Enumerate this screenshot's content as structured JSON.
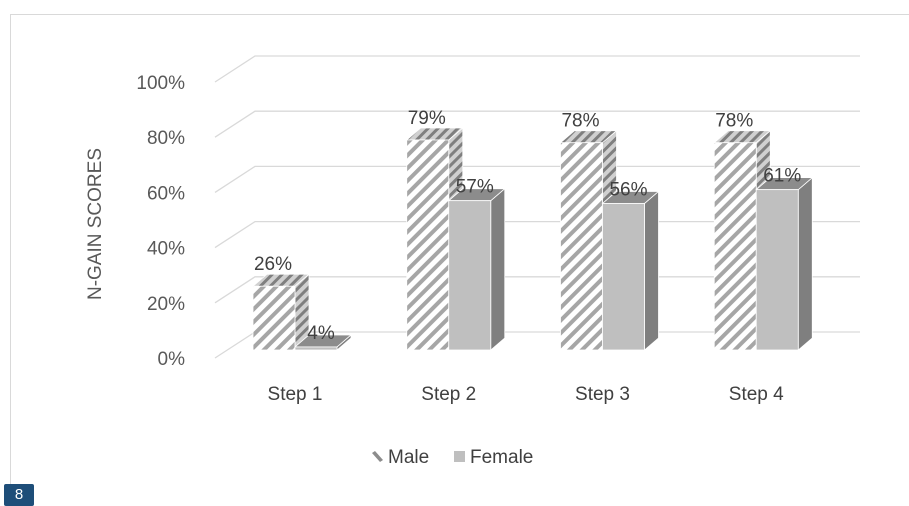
{
  "chart_data": {
    "type": "bar",
    "title": "",
    "xlabel": "",
    "ylabel": "N-GAIN SCORES",
    "categories": [
      "Step 1",
      "Step 2",
      "Step 3",
      "Step 4"
    ],
    "series": [
      {
        "name": "Male",
        "values": [
          26,
          79,
          78,
          78
        ],
        "labels": [
          "26%",
          "79%",
          "78%",
          "78%"
        ],
        "pattern": "hatched",
        "color": "#bfbfbf"
      },
      {
        "name": "Female",
        "values": [
          4,
          57,
          56,
          61
        ],
        "labels": [
          "4%",
          "57%",
          "56%",
          "61%"
        ],
        "pattern": "solid",
        "color": "#a6a6a6"
      }
    ],
    "ylim": [
      0,
      100
    ],
    "yticks": [
      "0%",
      "20%",
      "40%",
      "60%",
      "80%",
      "100%"
    ],
    "grid": true,
    "legend": "bottom",
    "three_d": true
  },
  "page_badge": "8"
}
